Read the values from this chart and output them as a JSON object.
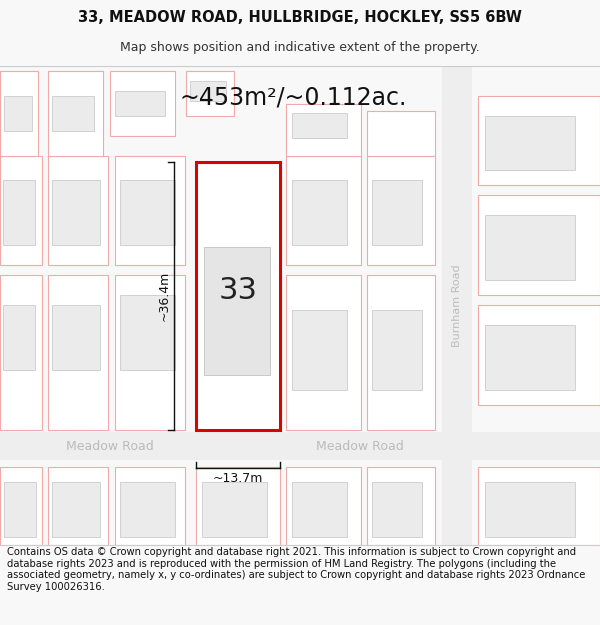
{
  "title_line1": "33, MEADOW ROAD, HULLBRIDGE, HOCKLEY, SS5 6BW",
  "title_line2": "Map shows position and indicative extent of the property.",
  "footer_text": "Contains OS data © Crown copyright and database right 2021. This information is subject to Crown copyright and database rights 2023 and is reproduced with the permission of HM Land Registry. The polygons (including the associated geometry, namely x, y co-ordinates) are subject to Crown copyright and database rights 2023 Ordnance Survey 100026316.",
  "area_label": "~453m²/~0.112ac.",
  "number_label": "33",
  "width_label": "~13.7m",
  "height_label": "~36.4m",
  "road_label_left": "Meadow Road",
  "road_label_right": "Meadow Road",
  "road_label_burnham": "Burnham Road",
  "bg_color": "#f8f8f8",
  "map_bg": "#ffffff",
  "plot_fill": "#ffffff",
  "plot_border": "#dd0000",
  "building_fill": "#ebebeb",
  "building_border": "#f0aaaa",
  "lot_border": "#f0b0b0",
  "road_fill": "#f0f0f0",
  "road_label_color": "#bbbbbb",
  "burnham_road_color": "#e8e8e8",
  "title_fontsize": 10.5,
  "subtitle_fontsize": 9,
  "footer_fontsize": 7.2,
  "area_fontsize": 17,
  "number_fontsize": 22,
  "dim_fontsize": 9
}
